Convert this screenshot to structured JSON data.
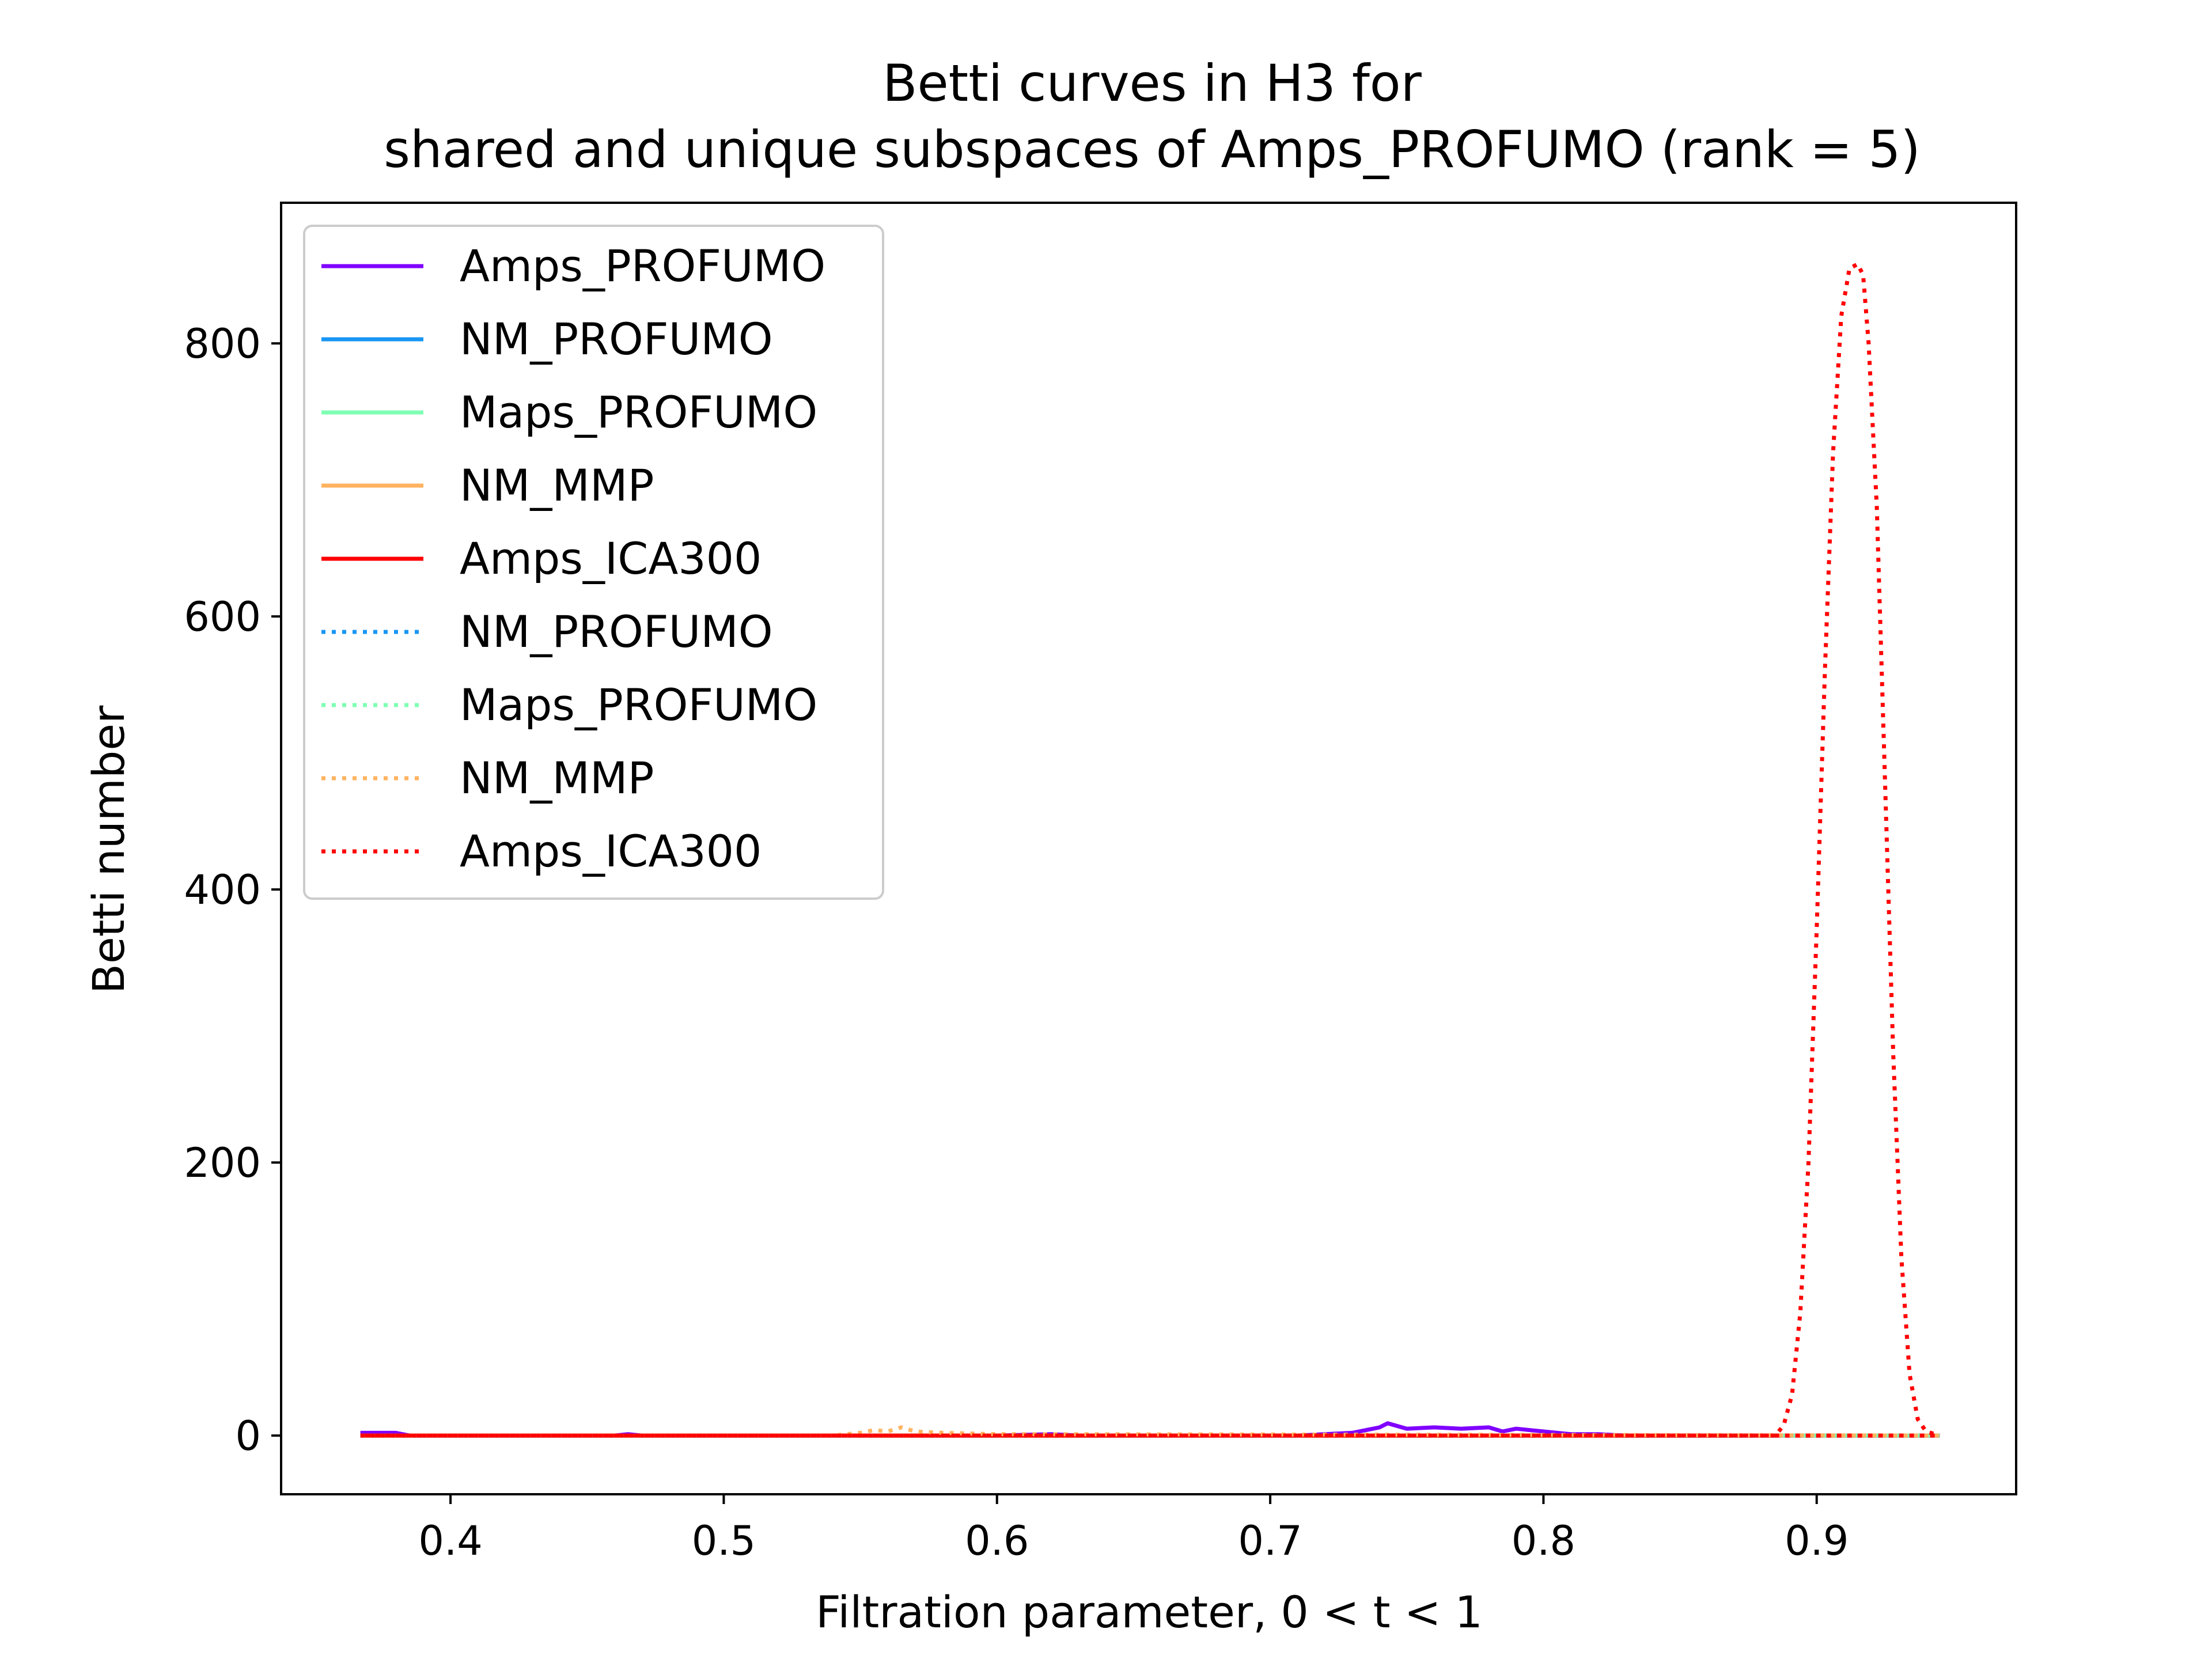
{
  "chart_data": {
    "type": "line",
    "title_line1": "Betti curves in H3 for",
    "title_line2": "shared and unique subspaces of Amps_PROFUMO (rank = 5)",
    "xlabel": "Filtration parameter, 0 < t < 1",
    "ylabel": "Betti number",
    "xlim": [
      0.338,
      0.973
    ],
    "ylim": [
      -43,
      903
    ],
    "xticks": [
      0.4,
      0.5,
      0.6,
      0.7,
      0.8,
      0.9
    ],
    "xtick_labels": [
      "0.4",
      "0.5",
      "0.6",
      "0.7",
      "0.8",
      "0.9"
    ],
    "yticks": [
      0,
      200,
      400,
      600,
      800
    ],
    "ytick_labels": [
      "0",
      "200",
      "400",
      "600",
      "800"
    ],
    "grid": false,
    "legend_position": "top-left",
    "series": [
      {
        "name": "Amps_PROFUMO",
        "color": "#8000ff",
        "style": "solid",
        "x": [
          0.367,
          0.38,
          0.385,
          0.4,
          0.46,
          0.465,
          0.47,
          0.6,
          0.62,
          0.63,
          0.71,
          0.73,
          0.74,
          0.743,
          0.75,
          0.76,
          0.77,
          0.78,
          0.785,
          0.79,
          0.8,
          0.81,
          0.82,
          0.83,
          0.945
        ],
        "y": [
          2,
          2,
          0,
          0,
          0,
          1,
          0,
          0,
          1,
          0,
          0,
          2,
          6,
          9,
          5,
          6,
          5,
          6,
          3,
          5,
          3,
          1,
          1,
          0,
          0
        ]
      },
      {
        "name": "NM_PROFUMO",
        "color": "#1996f3",
        "style": "solid",
        "x": [
          0.367,
          0.945
        ],
        "y": [
          0,
          0
        ]
      },
      {
        "name": "Maps_PROFUMO",
        "color": "#80ffb4",
        "style": "solid",
        "x": [
          0.367,
          0.945
        ],
        "y": [
          0,
          0
        ]
      },
      {
        "name": "NM_MMP",
        "color": "#ffb360",
        "style": "solid",
        "x": [
          0.367,
          0.945
        ],
        "y": [
          0,
          0
        ]
      },
      {
        "name": "Amps_ICA300",
        "color": "#ff0000",
        "style": "solid",
        "x": [
          0.367,
          0.945
        ],
        "y": [
          0,
          0
        ]
      },
      {
        "name": "NM_PROFUMO",
        "color": "#1996f3",
        "style": "dotted",
        "x": [
          0.367,
          0.945
        ],
        "y": [
          0,
          0
        ]
      },
      {
        "name": "Maps_PROFUMO",
        "color": "#80ffb4",
        "style": "dotted",
        "x": [
          0.367,
          0.88,
          0.945
        ],
        "y": [
          0,
          0,
          0
        ]
      },
      {
        "name": "NM_MMP",
        "color": "#ffb360",
        "style": "dotted",
        "x": [
          0.367,
          0.54,
          0.55,
          0.555,
          0.56,
          0.565,
          0.57,
          0.58,
          0.6,
          0.945
        ],
        "y": [
          0,
          0,
          2,
          4,
          3,
          6,
          3,
          2,
          1,
          0
        ]
      },
      {
        "name": "Amps_ICA300",
        "color": "#ff0000",
        "style": "dotted",
        "x": [
          0.367,
          0.885,
          0.888,
          0.891,
          0.894,
          0.897,
          0.9,
          0.903,
          0.906,
          0.909,
          0.912,
          0.915,
          0.917,
          0.919,
          0.922,
          0.925,
          0.928,
          0.931,
          0.934,
          0.937,
          0.94,
          0.945
        ],
        "y": [
          0,
          0,
          8,
          30,
          90,
          200,
          370,
          560,
          720,
          820,
          855,
          858,
          850,
          800,
          680,
          480,
          280,
          130,
          45,
          12,
          3,
          0
        ]
      }
    ]
  }
}
